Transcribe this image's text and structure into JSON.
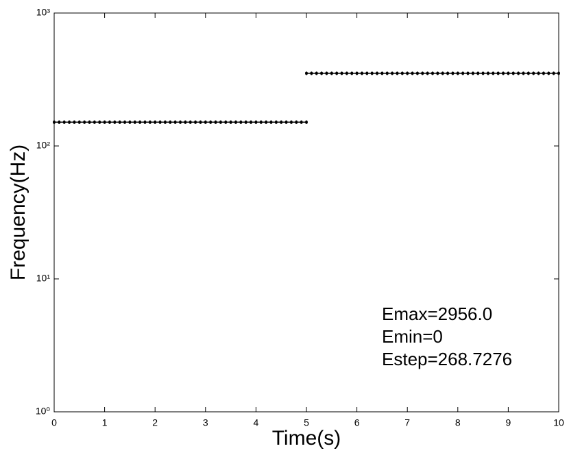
{
  "chart_data": {
    "type": "line",
    "xlabel": "Time(s)",
    "ylabel": "Frequency(Hz)",
    "log_y": true,
    "grid": false,
    "xlim": [
      0,
      10
    ],
    "xticks": [
      0,
      1,
      2,
      3,
      4,
      5,
      6,
      7,
      8,
      9,
      10
    ],
    "ylim": [
      1,
      1000
    ],
    "yticks": [
      {
        "value": 1,
        "label": "10⁰"
      },
      {
        "value": 10,
        "label": "10¹"
      },
      {
        "value": 100,
        "label": "10²"
      },
      {
        "value": 1000,
        "label": "10³"
      }
    ],
    "annotations": [
      "Emax=2956.0",
      "Emin=0",
      "Estep=268.7276"
    ],
    "series": [
      {
        "color": "#000000",
        "x": [
          0,
          0.1,
          0.2,
          0.3,
          0.4,
          0.5,
          0.6,
          0.7,
          0.8,
          0.9,
          1,
          1.1,
          1.2,
          1.3,
          1.4,
          1.5,
          1.6,
          1.7,
          1.8,
          1.9,
          2,
          2.1,
          2.2,
          2.3,
          2.4,
          2.5,
          2.6,
          2.7,
          2.8,
          2.9,
          3,
          3.1,
          3.2,
          3.3,
          3.4,
          3.5,
          3.6,
          3.7,
          3.8,
          3.9,
          4,
          4.1,
          4.2,
          4.3,
          4.4,
          4.5,
          4.6,
          4.7,
          4.8,
          4.9,
          5
        ],
        "values": [
          151,
          151,
          151,
          151,
          151,
          151,
          151,
          151,
          151,
          151,
          151,
          151,
          151,
          151,
          151,
          151,
          151,
          151,
          151,
          151,
          151,
          151,
          151,
          151,
          151,
          151,
          151,
          151,
          151,
          151,
          151,
          151,
          151,
          151,
          151,
          151,
          151,
          151,
          151,
          151,
          151,
          151,
          151,
          151,
          151,
          151,
          151,
          151,
          151,
          151,
          151
        ]
      },
      {
        "color": "#000000",
        "x": [
          5,
          5.1,
          5.2,
          5.3,
          5.4,
          5.5,
          5.6,
          5.7,
          5.8,
          5.9,
          6,
          6.1,
          6.2,
          6.3,
          6.4,
          6.5,
          6.6,
          6.7,
          6.8,
          6.9,
          7,
          7.1,
          7.2,
          7.3,
          7.4,
          7.5,
          7.6,
          7.7,
          7.8,
          7.9,
          8,
          8.1,
          8.2,
          8.3,
          8.4,
          8.5,
          8.6,
          8.7,
          8.8,
          8.9,
          9,
          9.1,
          9.2,
          9.3,
          9.4,
          9.5,
          9.6,
          9.7,
          9.8,
          9.9,
          10
        ],
        "values": [
          352,
          352,
          352,
          352,
          352,
          352,
          352,
          352,
          352,
          352,
          352,
          352,
          352,
          352,
          352,
          352,
          352,
          352,
          352,
          352,
          352,
          352,
          352,
          352,
          352,
          352,
          352,
          352,
          352,
          352,
          352,
          352,
          352,
          352,
          352,
          352,
          352,
          352,
          352,
          352,
          352,
          352,
          352,
          352,
          352,
          352,
          352,
          352,
          352,
          352,
          352
        ]
      }
    ]
  }
}
